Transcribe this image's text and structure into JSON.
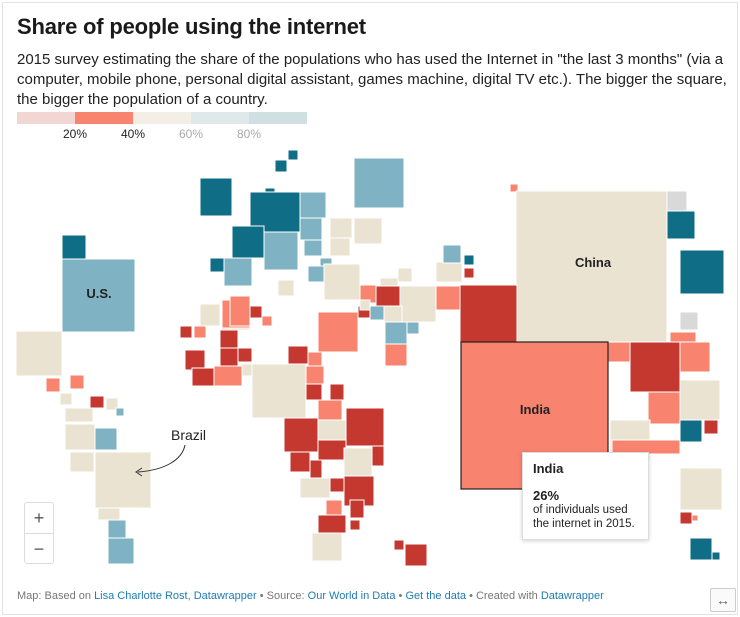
{
  "title": "Share of people using the internet",
  "description": "2015 survey estimating the share of the populations who has used the Internet in \"the last 3 months\" (via a computer, mobile phone, personal digital assistant, games machine, digital TV etc.). The bigger the square, the bigger the population of a country.",
  "legend": {
    "colors": [
      "#f2d6d3",
      "#f8836f",
      "#f3efe6",
      "#dfe9e9",
      "#cfdfe2"
    ],
    "ticks": [
      "20%",
      "40%",
      "60%",
      "80%"
    ],
    "muted_ticks": [
      "60%",
      "80%"
    ]
  },
  "labels": {
    "us": "U.S.",
    "china": "China",
    "india": "India",
    "brazil": "Brazil"
  },
  "tooltip": {
    "country": "India",
    "value": "26%",
    "text": "of individuals used the internet in 2015."
  },
  "zoom": {
    "in": "+",
    "out": "−"
  },
  "footer": {
    "map_prefix": "Map: Based on",
    "map_credit": "Lisa Charlotte Rost, Datawrapper",
    "source_prefix": "• Source:",
    "source": "Our World in Data",
    "sep": "•",
    "get_data": "Get the data",
    "created_prefix": "• Created with",
    "created_with": "Datawrapper"
  },
  "expand_icon": "↔",
  "palette": {
    "dark_red": "#c5382f",
    "salmon": "#f8836f",
    "beige": "#ebe3d2",
    "light_blue": "#7fb3c3",
    "teal": "#0f6e86",
    "no_data": "#d9d9d9"
  }
}
